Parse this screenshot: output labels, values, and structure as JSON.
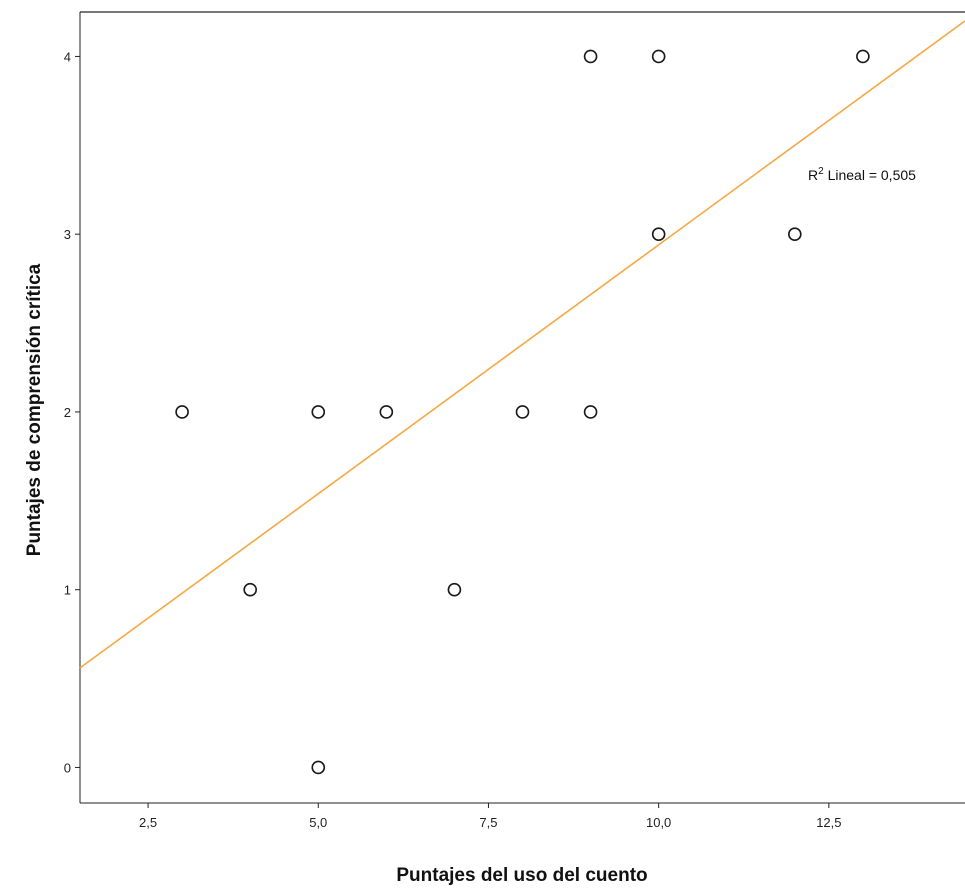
{
  "chart_data": {
    "type": "scatter",
    "title": "",
    "xlabel": "Puntajes del uso del cuento",
    "ylabel": "Puntajes de comprensión crítica",
    "xlim": [
      1.5,
      14.5
    ],
    "ylim": [
      -0.2,
      4.25
    ],
    "x_ticks": [
      2.5,
      5.0,
      7.5,
      10.0,
      12.5
    ],
    "x_tick_labels": [
      "2,5",
      "5,0",
      "7,5",
      "10,0",
      "12,5"
    ],
    "y_ticks": [
      0,
      1,
      2,
      3,
      4
    ],
    "y_tick_labels": [
      "0",
      "1",
      "2",
      "3",
      "4"
    ],
    "grid": false,
    "points": [
      {
        "x": 3,
        "y": 2
      },
      {
        "x": 4,
        "y": 1
      },
      {
        "x": 5,
        "y": 2
      },
      {
        "x": 5,
        "y": 0
      },
      {
        "x": 6,
        "y": 2
      },
      {
        "x": 7,
        "y": 1
      },
      {
        "x": 8,
        "y": 2
      },
      {
        "x": 9,
        "y": 4
      },
      {
        "x": 9,
        "y": 2
      },
      {
        "x": 10,
        "y": 4
      },
      {
        "x": 10,
        "y": 3
      },
      {
        "x": 12,
        "y": 3
      },
      {
        "x": 13,
        "y": 4
      }
    ],
    "fit_line": {
      "type": "linear",
      "x": [
        1.5,
        14.5
      ],
      "y": [
        0.56,
        4.2
      ]
    },
    "annotation": {
      "r2_prefix": "R",
      "r2_sup": "2",
      "r2_text": " Lineal = 0,505"
    },
    "colors": {
      "fit_line": "#f5a843",
      "marker_stroke": "#1a1a1a",
      "marker_fill": "#ffffff",
      "axis": "#222222",
      "frame_top": "#777777"
    }
  }
}
